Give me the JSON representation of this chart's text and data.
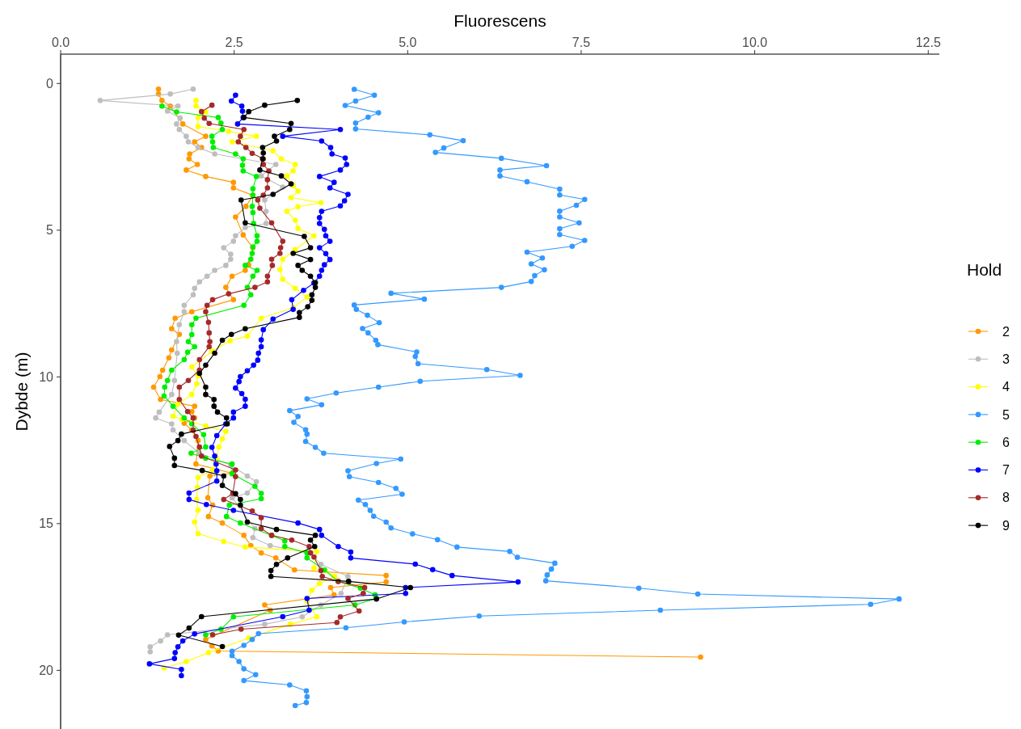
{
  "chart_data": {
    "type": "line",
    "xlabel": "Fluorescens",
    "ylabel": "Dybde (m)",
    "legend_title": "Hold",
    "legend": "right",
    "marker": "circle",
    "line_style": "solid",
    "grid": false,
    "xlim": [
      0,
      12.66
    ],
    "ylim": [
      22,
      -1
    ],
    "xticks": [
      {
        "value": 0,
        "label": "0.0"
      },
      2.5,
      {
        "value": 5,
        "label": "5.0"
      },
      7.5,
      {
        "value": 10,
        "label": "10.0"
      },
      12.5
    ],
    "yticks": [
      0,
      5,
      10,
      15,
      20
    ],
    "series": [
      {
        "name": "2",
        "color": "#ff9900",
        "x": [
          1.41,
          1.41,
          1.46,
          1.58,
          1.76,
          2.09,
          1.93,
          2.03,
          1.86,
          1.85,
          1.97,
          1.81,
          2.09,
          2.49,
          2.49,
          2.77,
          2.67,
          2.52,
          2.63,
          2.77,
          2.71,
          2.66,
          2.47,
          2.38,
          2.49,
          1.89,
          1.65,
          1.6,
          1.71,
          1.6,
          1.56,
          1.47,
          1.43,
          1.34,
          1.44,
          1.93,
          1.89,
          1.93,
          1.78,
          1.89,
          1.98,
          1.95,
          2.47,
          2.15,
          2.12,
          2.19,
          2.13,
          2.33,
          2.64,
          2.74,
          2.89,
          3.1,
          3.37,
          4.69,
          4.69,
          3.89,
          3.94,
          2.94,
          3.02,
          2.09,
          2.18,
          2.27,
          9.22
        ],
        "values": [
          0.19,
          0.36,
          0.58,
          0.77,
          1.38,
          1.8,
          1.99,
          2.18,
          2.4,
          2.57,
          2.76,
          2.95,
          3.17,
          3.37,
          3.56,
          3.81,
          4.19,
          4.55,
          5.16,
          5.6,
          6.18,
          6.37,
          6.57,
          6.95,
          7.37,
          7.78,
          8.0,
          8.36,
          8.55,
          9.08,
          9.35,
          9.77,
          9.99,
          10.35,
          10.77,
          11.0,
          11.18,
          11.4,
          11.58,
          11.81,
          12.17,
          12.97,
          13.28,
          13.38,
          14.12,
          14.37,
          14.76,
          14.98,
          15.4,
          15.75,
          16.0,
          16.17,
          16.58,
          16.77,
          16.99,
          17.18,
          17.43,
          17.77,
          17.95,
          18.95,
          19.17,
          19.34,
          19.55
        ]
      },
      {
        "name": "3",
        "color": "#bebebe",
        "x": [
          1.91,
          1.58,
          0.57,
          1.69,
          1.54,
          1.72,
          1.67,
          1.71,
          1.81,
          1.84,
          1.98,
          2.22,
          3.1,
          2.89,
          3.2,
          2.94,
          2.96,
          2.96,
          2.66,
          2.52,
          2.49,
          2.35,
          2.45,
          2.45,
          2.38,
          2.22,
          2.11,
          2.0,
          1.93,
          1.91,
          1.78,
          1.78,
          1.71,
          1.67,
          1.68,
          1.64,
          1.6,
          1.42,
          1.37,
          1.6,
          1.62,
          1.78,
          2.0,
          2.45,
          2.69,
          2.82,
          2.69,
          2.47,
          2.8,
          2.77,
          3.02,
          3.6,
          3.75,
          4.14,
          4.04,
          3.75,
          3.48,
          2.94,
          1.54,
          1.44,
          1.29,
          1.29
        ],
        "values": [
          0.19,
          0.36,
          0.58,
          0.77,
          0.94,
          1.18,
          1.38,
          1.57,
          1.8,
          1.99,
          2.18,
          2.4,
          2.76,
          3.15,
          3.53,
          3.97,
          4.36,
          4.77,
          4.91,
          5.19,
          5.38,
          5.6,
          5.82,
          5.99,
          6.2,
          6.37,
          6.57,
          6.76,
          6.98,
          7.2,
          7.56,
          7.78,
          8.22,
          8.8,
          9.19,
          10.12,
          10.6,
          11.2,
          11.4,
          11.6,
          11.81,
          12.17,
          12.6,
          13.0,
          13.38,
          13.57,
          13.96,
          14.12,
          15.17,
          15.48,
          15.75,
          16.0,
          16.39,
          16.8,
          17.38,
          17.77,
          18.18,
          18.43,
          18.79,
          19.0,
          19.2,
          19.37
        ]
      },
      {
        "name": "4",
        "color": "#ffff00",
        "x": [
          1.95,
          1.95,
          2.09,
          1.98,
          1.98,
          2.42,
          2.82,
          2.47,
          3.06,
          3.18,
          3.38,
          3.35,
          3.26,
          3.35,
          3.42,
          3.32,
          3.75,
          3.42,
          3.26,
          3.38,
          3.42,
          3.65,
          3.38,
          3.2,
          3.16,
          3.2,
          3.38,
          3.55,
          3.35,
          2.89,
          2.69,
          2.44,
          2.18,
          1.89,
          1.98,
          1.96,
          1.89,
          1.69,
          1.62,
          1.75,
          2.09,
          2.38,
          2.33,
          2.28,
          2.25,
          2.19,
          1.98,
          1.97,
          1.96,
          1.98,
          1.93,
          1.98,
          2.35,
          2.66,
          3.69,
          3.65,
          3.81,
          3.95,
          3.73,
          3.62,
          3.55,
          3.69,
          3.31,
          2.71,
          2.13,
          1.81,
          1.49
        ],
        "values": [
          0.58,
          0.77,
          0.97,
          1.16,
          1.47,
          1.63,
          1.8,
          1.99,
          2.29,
          2.57,
          2.76,
          2.98,
          3.15,
          3.48,
          3.67,
          3.89,
          4.06,
          4.2,
          4.36,
          4.66,
          4.94,
          5.19,
          5.66,
          5.99,
          6.34,
          6.67,
          6.98,
          7.28,
          7.64,
          8.0,
          8.61,
          8.77,
          9.13,
          9.66,
          9.96,
          10.24,
          10.6,
          10.93,
          11.34,
          11.45,
          11.67,
          11.86,
          12.11,
          12.39,
          12.8,
          13.16,
          13.43,
          13.77,
          14.18,
          14.54,
          14.95,
          15.34,
          15.61,
          15.8,
          15.95,
          16.52,
          16.6,
          16.8,
          17.04,
          17.27,
          17.65,
          18.18,
          18.43,
          18.9,
          19.4,
          19.7,
          19.92
        ]
      },
      {
        "name": "5",
        "color": "#3399ff",
        "x": [
          4.23,
          4.52,
          4.25,
          4.1,
          4.58,
          4.43,
          4.25,
          4.25,
          5.32,
          5.8,
          5.52,
          5.4,
          6.35,
          7.0,
          6.33,
          6.33,
          6.72,
          7.19,
          7.19,
          7.55,
          7.43,
          7.19,
          7.19,
          7.47,
          7.19,
          7.19,
          7.55,
          7.37,
          6.72,
          6.94,
          6.78,
          6.97,
          6.83,
          6.78,
          6.35,
          4.76,
          5.24,
          4.23,
          4.26,
          4.42,
          4.59,
          4.35,
          4.43,
          4.54,
          4.57,
          5.13,
          5.11,
          5.15,
          6.14,
          6.62,
          5.18,
          4.58,
          3.97,
          3.55,
          3.76,
          3.3,
          3.42,
          3.36,
          3.53,
          3.55,
          3.53,
          3.67,
          3.79,
          4.9,
          4.55,
          4.14,
          4.16,
          4.58,
          4.83,
          4.92,
          4.29,
          4.39,
          4.46,
          4.51,
          4.69,
          4.76,
          5.07,
          5.43,
          5.71,
          6.47,
          6.58,
          7.12,
          7.07,
          7.01,
          6.99,
          8.33,
          9.18,
          12.08,
          11.67,
          8.64,
          6.03,
          4.95,
          4.11,
          2.85,
          2.76,
          2.64,
          2.47,
          2.47,
          2.57,
          2.64,
          2.81,
          2.64,
          3.3,
          3.54,
          3.55,
          3.54,
          3.38
        ],
        "values": [
          0.2,
          0.4,
          0.6,
          0.75,
          1.0,
          1.15,
          1.35,
          1.55,
          1.75,
          1.95,
          2.2,
          2.35,
          2.55,
          2.8,
          2.95,
          3.15,
          3.35,
          3.6,
          3.8,
          3.95,
          4.15,
          4.35,
          4.55,
          4.75,
          4.95,
          5.15,
          5.35,
          5.55,
          5.75,
          5.95,
          6.15,
          6.35,
          6.55,
          6.75,
          6.95,
          7.15,
          7.35,
          7.55,
          7.7,
          7.9,
          8.15,
          8.35,
          8.5,
          8.75,
          8.9,
          9.15,
          9.3,
          9.55,
          9.75,
          9.95,
          10.15,
          10.35,
          10.55,
          10.75,
          10.95,
          11.15,
          11.35,
          11.55,
          11.8,
          11.95,
          12.2,
          12.4,
          12.6,
          12.8,
          12.95,
          13.2,
          13.4,
          13.6,
          13.8,
          14.0,
          14.2,
          14.35,
          14.55,
          14.75,
          14.95,
          15.15,
          15.35,
          15.55,
          15.8,
          15.95,
          16.15,
          16.35,
          16.55,
          16.75,
          16.95,
          17.2,
          17.4,
          17.57,
          17.75,
          17.95,
          18.15,
          18.35,
          18.55,
          18.75,
          18.95,
          19.15,
          19.35,
          19.5,
          19.7,
          19.95,
          20.15,
          20.35,
          20.5,
          20.7,
          20.9,
          21.1,
          21.2
        ]
      },
      {
        "name": "6",
        "color": "#00ee00",
        "x": [
          1.46,
          1.67,
          2.27,
          2.31,
          2.33,
          2.18,
          2.19,
          2.2,
          2.52,
          2.63,
          2.62,
          2.63,
          2.82,
          2.77,
          2.77,
          2.76,
          2.77,
          2.78,
          2.83,
          2.83,
          2.77,
          2.76,
          2.74,
          2.66,
          2.83,
          2.77,
          2.69,
          2.74,
          2.64,
          1.95,
          1.89,
          1.89,
          1.84,
          1.93,
          1.83,
          1.78,
          1.6,
          1.54,
          1.5,
          1.49,
          1.62,
          1.78,
          1.89,
          2.06,
          2.09,
          1.88,
          2.09,
          2.47,
          2.47,
          2.8,
          2.89,
          2.89,
          2.43,
          2.39,
          2.59,
          3.04,
          3.23,
          3.23,
          3.55,
          3.55,
          3.8,
          4.0,
          4.32,
          4.53,
          4.55,
          4.24,
          2.49,
          2.31,
          2.09
        ],
        "values": [
          0.77,
          0.97,
          1.16,
          1.35,
          1.57,
          1.8,
          1.99,
          2.18,
          2.4,
          2.57,
          2.79,
          2.98,
          3.17,
          3.59,
          3.81,
          4.19,
          4.4,
          4.77,
          5.19,
          5.38,
          5.57,
          5.79,
          5.99,
          6.2,
          6.37,
          6.57,
          6.95,
          7.2,
          7.56,
          8.0,
          8.22,
          8.56,
          8.8,
          8.97,
          9.16,
          9.41,
          9.77,
          10.12,
          10.35,
          10.65,
          11.0,
          11.4,
          11.6,
          11.97,
          12.39,
          12.6,
          12.77,
          12.97,
          13.3,
          13.73,
          13.97,
          14.15,
          14.37,
          14.76,
          14.98,
          15.4,
          15.59,
          15.78,
          16.0,
          16.17,
          16.58,
          16.97,
          17.2,
          17.43,
          17.55,
          17.77,
          18.18,
          18.6,
          18.79
        ]
      },
      {
        "name": "7",
        "color": "#0000ff",
        "x": [
          2.52,
          2.46,
          2.61,
          2.62,
          2.63,
          2.55,
          4.03,
          3.2,
          3.76,
          3.89,
          3.91,
          4.1,
          4.12,
          4.03,
          3.73,
          3.94,
          3.88,
          4.14,
          4.09,
          4.03,
          3.76,
          3.73,
          3.73,
          3.8,
          3.82,
          3.88,
          3.73,
          3.82,
          3.88,
          3.8,
          3.76,
          3.73,
          3.65,
          3.5,
          3.33,
          3.35,
          3.06,
          2.92,
          2.89,
          2.89,
          2.85,
          2.84,
          2.78,
          2.69,
          2.59,
          2.57,
          2.52,
          2.61,
          2.66,
          2.66,
          2.49,
          2.49,
          2.38,
          2.25,
          2.18,
          2.22,
          2.24,
          2.25,
          2.25,
          1.85,
          1.85,
          2.1,
          2.49,
          3.42,
          3.73,
          3.76,
          4.0,
          4.18,
          4.18,
          5.11,
          5.36,
          5.64,
          6.59,
          4.97,
          4.97,
          3.55,
          3.58,
          3.2,
          1.93,
          1.76,
          1.69,
          1.65,
          1.64,
          1.28,
          1.74,
          1.74
        ],
        "values": [
          0.4,
          0.6,
          0.77,
          0.94,
          1.16,
          1.38,
          1.57,
          1.8,
          1.96,
          2.18,
          2.4,
          2.54,
          2.76,
          2.95,
          3.17,
          3.37,
          3.56,
          3.78,
          4.0,
          4.17,
          4.36,
          4.57,
          4.77,
          4.97,
          5.19,
          5.38,
          5.6,
          5.8,
          6.0,
          6.18,
          6.37,
          6.57,
          6.8,
          7.05,
          7.37,
          7.7,
          8.03,
          8.39,
          8.74,
          8.97,
          9.19,
          9.43,
          9.6,
          9.79,
          9.99,
          10.16,
          10.38,
          10.57,
          10.76,
          11.0,
          11.2,
          11.4,
          11.6,
          12.0,
          12.4,
          12.7,
          12.97,
          13.2,
          13.55,
          13.96,
          14.18,
          14.35,
          14.55,
          14.98,
          15.2,
          15.4,
          15.78,
          15.97,
          16.17,
          16.38,
          16.57,
          16.77,
          16.99,
          17.18,
          17.38,
          17.55,
          17.95,
          18.17,
          18.76,
          19.0,
          19.2,
          19.4,
          19.6,
          19.78,
          19.97,
          20.18
        ]
      },
      {
        "name": "8",
        "color": "#a52a2a",
        "x": [
          2.18,
          2.03,
          2.07,
          2.14,
          2.64,
          2.59,
          2.56,
          2.67,
          2.76,
          2.92,
          2.92,
          3.0,
          2.98,
          2.98,
          2.92,
          2.84,
          2.87,
          3.04,
          3.2,
          3.17,
          3.16,
          3.04,
          3.05,
          2.98,
          2.98,
          2.8,
          2.42,
          2.19,
          2.11,
          2.09,
          2.13,
          2.14,
          2.15,
          2.14,
          2.0,
          2.0,
          1.84,
          1.71,
          1.71,
          1.83,
          1.91,
          1.91,
          1.95,
          2.0,
          2.03,
          2.52,
          2.52,
          2.48,
          2.35,
          2.76,
          2.89,
          2.89,
          3.04,
          3.33,
          3.58,
          3.6,
          3.65,
          3.75,
          3.77,
          4.0,
          4.38,
          4.36,
          4.14,
          4.3,
          4.03,
          3.98,
          2.6,
          2.19
        ],
        "values": [
          0.74,
          0.96,
          1.18,
          1.36,
          1.57,
          1.8,
          1.99,
          2.18,
          2.38,
          2.57,
          2.76,
          2.98,
          3.28,
          3.56,
          3.81,
          3.97,
          4.25,
          4.75,
          5.38,
          5.6,
          5.79,
          5.99,
          6.2,
          6.57,
          6.76,
          6.95,
          7.17,
          7.37,
          7.56,
          7.78,
          8.14,
          8.5,
          8.8,
          8.97,
          9.41,
          9.77,
          10.12,
          10.35,
          10.77,
          11.18,
          11.4,
          11.82,
          12.03,
          12.39,
          12.7,
          13.17,
          13.4,
          13.97,
          14.18,
          14.57,
          14.8,
          15.17,
          15.4,
          15.56,
          15.78,
          16.0,
          16.14,
          16.6,
          16.8,
          16.97,
          17.18,
          17.38,
          17.55,
          17.98,
          18.18,
          18.37,
          18.6,
          18.79
        ]
      },
      {
        "name": "9",
        "color": "#000000",
        "x": [
          3.41,
          2.94,
          2.71,
          2.64,
          3.32,
          3.3,
          3.08,
          3.11,
          2.91,
          2.92,
          2.91,
          2.87,
          3.18,
          3.32,
          3.06,
          2.6,
          2.66,
          3.51,
          3.6,
          3.35,
          3.6,
          3.42,
          3.48,
          3.6,
          3.67,
          3.67,
          3.62,
          3.62,
          3.56,
          3.44,
          3.44,
          2.66,
          2.46,
          2.33,
          2.22,
          2.09,
          2.0,
          2.09,
          2.09,
          2.21,
          2.21,
          2.26,
          2.39,
          2.4,
          1.74,
          1.69,
          1.57,
          1.64,
          1.64,
          2.04,
          2.35,
          2.33,
          2.52,
          2.59,
          2.59,
          2.69,
          3.11,
          3.67,
          3.6,
          3.66,
          3.27,
          3.11,
          3.03,
          3.03,
          4.15,
          5.04,
          4.55,
          2.03,
          1.85,
          1.7,
          2.33
        ],
        "values": [
          0.58,
          0.74,
          0.96,
          1.16,
          1.36,
          1.57,
          1.8,
          1.96,
          2.18,
          2.37,
          2.57,
          2.95,
          3.15,
          3.42,
          3.78,
          3.97,
          4.75,
          5.21,
          5.6,
          5.79,
          6.0,
          6.2,
          6.37,
          6.57,
          6.79,
          6.95,
          7.2,
          7.39,
          7.61,
          7.81,
          7.97,
          8.36,
          8.55,
          8.75,
          9.19,
          9.6,
          9.88,
          10.35,
          10.6,
          10.77,
          11.0,
          11.2,
          11.4,
          11.6,
          11.95,
          12.17,
          12.37,
          12.77,
          13.02,
          13.19,
          13.38,
          13.7,
          13.98,
          14.18,
          14.37,
          14.95,
          15.2,
          15.4,
          15.56,
          15.78,
          16.17,
          16.39,
          16.6,
          16.8,
          16.97,
          17.18,
          17.57,
          18.17,
          18.56,
          18.8,
          19.19
        ]
      }
    ]
  }
}
